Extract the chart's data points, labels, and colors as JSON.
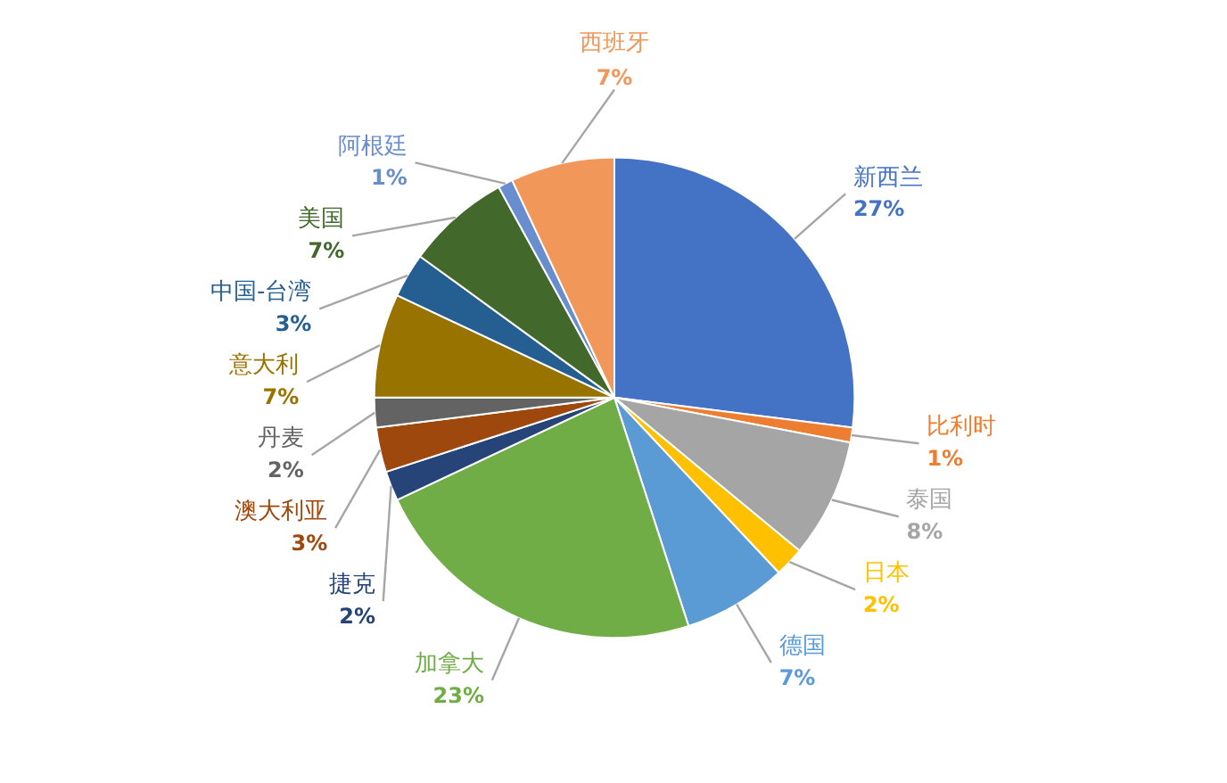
{
  "chart_data": {
    "type": "pie",
    "categories": [
      "新西兰",
      "比利时",
      "泰国",
      "日本",
      "德国",
      "加拿大",
      "捷克",
      "澳大利亚",
      "丹麦",
      "意大利",
      "中国-台湾",
      "美国",
      "阿根廷",
      "西班牙"
    ],
    "values": [
      27,
      1,
      8,
      2,
      7,
      23,
      2,
      3,
      2,
      7,
      3,
      7,
      1,
      7
    ],
    "colors": [
      "#4472c4",
      "#ed7d31",
      "#a5a5a5",
      "#ffc000",
      "#5b9bd5",
      "#70ad47",
      "#264478",
      "#9e480e",
      "#636363",
      "#997300",
      "#255e91",
      "#43682b",
      "#698ed0",
      "#f1975a"
    ],
    "value_labels": [
      "27%",
      "1%",
      "8%",
      "2%",
      "7%",
      "23%",
      "2%",
      "3%",
      "2%",
      "7%",
      "3%",
      "7%",
      "1%",
      "7%"
    ]
  }
}
